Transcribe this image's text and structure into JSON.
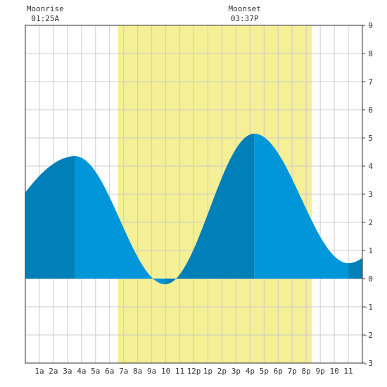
{
  "chart_data": {
    "type": "area",
    "title": "",
    "xlabel": "",
    "ylabel": "",
    "ylim": [
      -3,
      9
    ],
    "yticks": [
      -3,
      -2,
      -1,
      0,
      1,
      2,
      3,
      4,
      5,
      6,
      7,
      8,
      9
    ],
    "xlim": [
      0,
      24
    ],
    "xtick_labels": [
      "1a",
      "2a",
      "3a",
      "4a",
      "5a",
      "6a",
      "7a",
      "8a",
      "9a",
      "10",
      "11",
      "12p",
      "1p",
      "2p",
      "3p",
      "4p",
      "5p",
      "6p",
      "7p",
      "8p",
      "9p",
      "10",
      "11"
    ],
    "grid": true,
    "daylight": {
      "start": 6.6,
      "end": 20.4
    },
    "tides": [
      {
        "type": "high",
        "time": 3.55,
        "height": 4.35
      },
      {
        "type": "low",
        "time": 9.95,
        "height": -0.2
      },
      {
        "type": "high",
        "time": 16.3,
        "height": 5.15
      },
      {
        "type": "low",
        "time": 23.0,
        "height": 0.55
      }
    ],
    "edges": {
      "start_height": 1.9,
      "end_height": 0.9
    },
    "moon_events": [
      {
        "label": "Moonrise",
        "time_text": "01:25A",
        "time": 1.417
      },
      {
        "label": "Moonset",
        "time_text": "03:37P",
        "time": 15.617
      }
    ],
    "colors": {
      "daylight": "#f5ef95",
      "water_rising": "#007fb9",
      "water_falling": "#0096d9",
      "grid": "#cccccc",
      "axis": "#333333"
    }
  }
}
